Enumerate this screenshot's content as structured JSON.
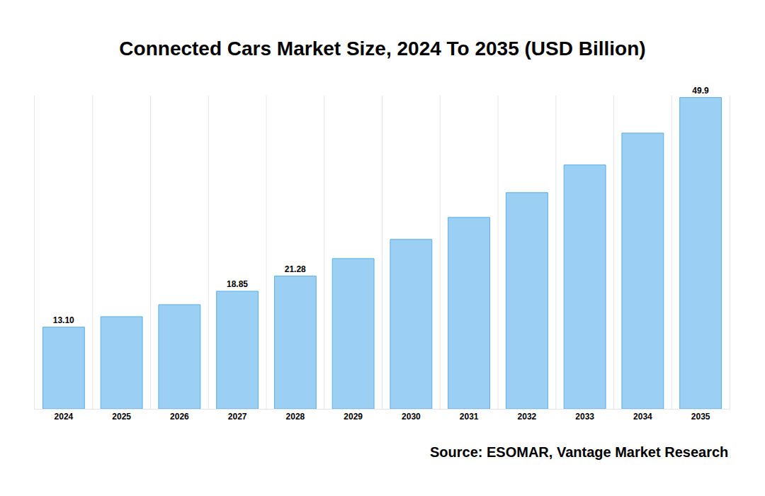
{
  "chart_data": {
    "type": "bar",
    "title": "Connected Cars Market Size, 2024 To 2035 (USD Billion)",
    "annotation": "Source: ESOMAR, Vantage Market Research",
    "categories": [
      "2024",
      "2025",
      "2026",
      "2027",
      "2028",
      "2029",
      "2030",
      "2031",
      "2032",
      "2033",
      "2034",
      "2035"
    ],
    "values": [
      13.1,
      14.77,
      16.7,
      18.85,
      21.28,
      24.09,
      27.16,
      30.68,
      34.66,
      39.09,
      44.2,
      49.9
    ],
    "value_labels": [
      "13.10",
      null,
      null,
      "18.85",
      "21.28",
      null,
      null,
      null,
      null,
      null,
      null,
      "49.9"
    ],
    "data_labels": true,
    "color": "#9bcff4",
    "ylim": [
      0,
      50.2
    ],
    "yticks": [],
    "tick_labels": "x",
    "grid": true
  }
}
